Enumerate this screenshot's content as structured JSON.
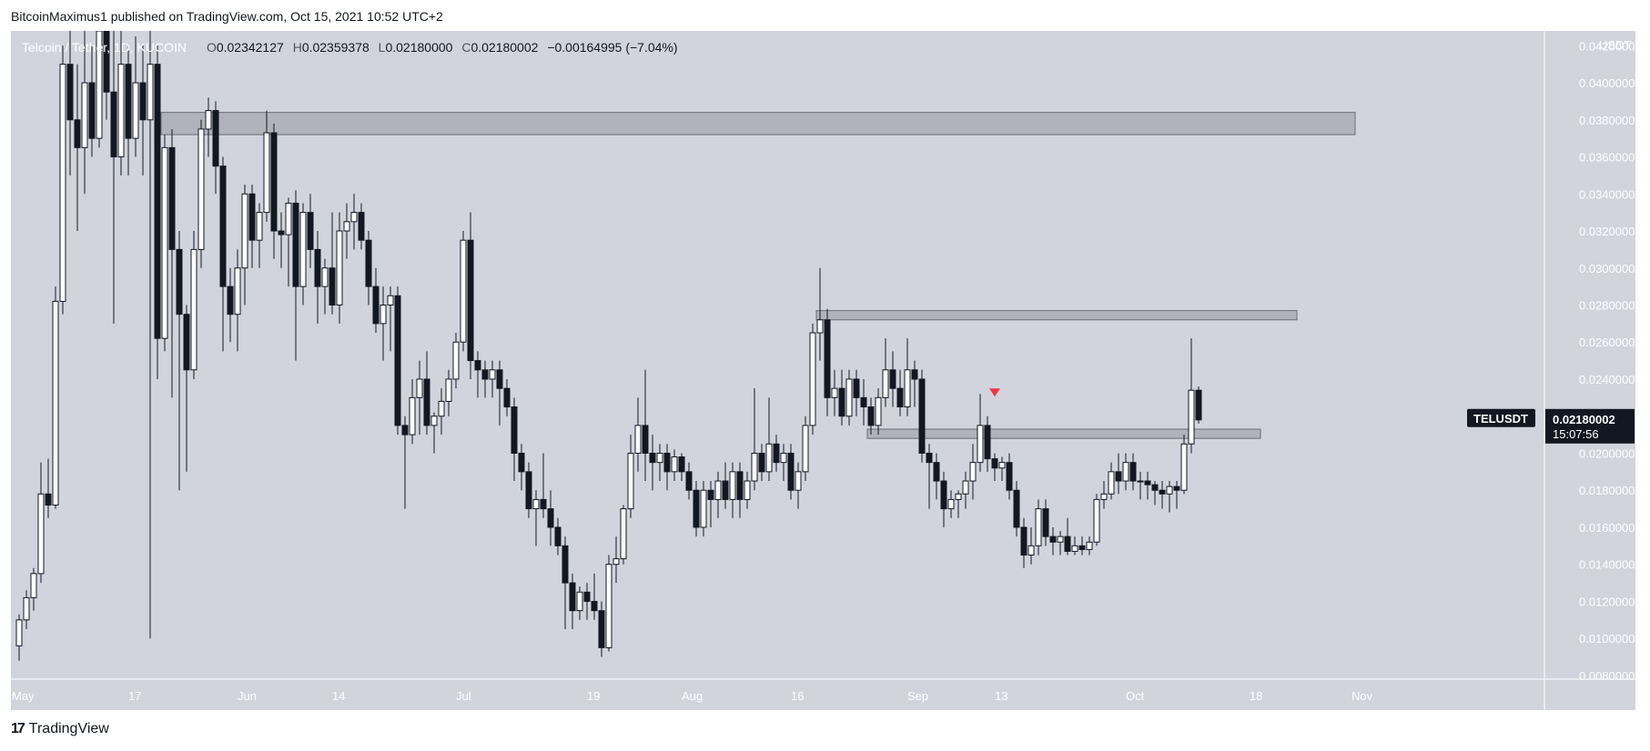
{
  "header": {
    "caption": "BitcoinMaximus1 published on TradingView.com, Oct 15, 2021 10:52 UTC+2"
  },
  "legend": {
    "symbol": "Telcoin / Tether, 1D, KUCOIN",
    "o_label": "O",
    "o_value": "0.02342127",
    "h_label": "H",
    "h_value": "0.02359378",
    "l_label": "L",
    "l_value": "0.02180000",
    "c_label": "C",
    "c_value": "0.02180002",
    "change": "−0.00164995 (−7.04%)"
  },
  "footer": {
    "logo_text": "TradingView"
  },
  "colors": {
    "background": "#d1d4dc",
    "candle_up": "#ffffff",
    "candle_down": "#131722",
    "zone": "#9598a1",
    "marker": "#f23645",
    "label_bg": "#131722"
  },
  "chart_data": {
    "type": "candlestick",
    "title": "Telcoin / Tether, 1D, KUCOIN",
    "currency": "USDT",
    "ylim": [
      0.0078,
      0.0428
    ],
    "y_ticks": [
      "0.04200000",
      "0.04000000",
      "0.03800000",
      "0.03600000",
      "0.03400000",
      "0.03200000",
      "0.03000000",
      "0.02800000",
      "0.02600000",
      "0.02400000",
      "0.02200000",
      "0.02000000",
      "0.01800000",
      "0.01600000",
      "0.01400000",
      "0.01200000",
      "0.01000000",
      "0.00800000"
    ],
    "x_ticks": [
      {
        "label": "May",
        "day": 0
      },
      {
        "label": "17",
        "day": 16
      },
      {
        "label": "Jun",
        "day": 31
      },
      {
        "label": "14",
        "day": 44
      },
      {
        "label": "Jul",
        "day": 61
      },
      {
        "label": "19",
        "day": 79
      },
      {
        "label": "Aug",
        "day": 92
      },
      {
        "label": "16",
        "day": 107
      },
      {
        "label": "Sep",
        "day": 123
      },
      {
        "label": "13",
        "day": 135
      },
      {
        "label": "Oct",
        "day": 153
      },
      {
        "label": "18",
        "day": 170
      },
      {
        "label": "Nov",
        "day": 184
      }
    ],
    "zones": [
      {
        "name": "resistance-zone-top",
        "day_start": 20,
        "day_end": 184,
        "low": 0.0372,
        "high": 0.0384
      },
      {
        "name": "resistance-zone-mid",
        "day_start": 110,
        "day_end": 176,
        "low": 0.0272,
        "high": 0.0277
      },
      {
        "name": "support-zone",
        "day_start": 117,
        "day_end": 171,
        "low": 0.0208,
        "high": 0.0213
      }
    ],
    "marker": {
      "day": 134,
      "value": 0.0232,
      "shape": "triangle-down"
    },
    "price_label": {
      "symbol": "TELUSDT",
      "value": "0.02180002",
      "countdown": "15:07:56"
    },
    "candles": [
      [
        0.0096,
        0.011,
        0.0088,
        0.0113
      ],
      [
        0.011,
        0.0122,
        0.0105,
        0.0126
      ],
      [
        0.0122,
        0.0135,
        0.0115,
        0.0138
      ],
      [
        0.0135,
        0.0178,
        0.013,
        0.0195
      ],
      [
        0.0178,
        0.0172,
        0.0165,
        0.0197
      ],
      [
        0.0172,
        0.0282,
        0.017,
        0.029
      ],
      [
        0.0282,
        0.041,
        0.0275,
        0.042
      ],
      [
        0.041,
        0.038,
        0.035,
        0.043
      ],
      [
        0.038,
        0.0365,
        0.032,
        0.041
      ],
      [
        0.0365,
        0.04,
        0.034,
        0.044
      ],
      [
        0.04,
        0.037,
        0.036,
        0.042
      ],
      [
        0.037,
        0.046,
        0.0365,
        0.047
      ],
      [
        0.046,
        0.0395,
        0.038,
        0.048
      ],
      [
        0.0395,
        0.036,
        0.027,
        0.043
      ],
      [
        0.036,
        0.041,
        0.035,
        0.044
      ],
      [
        0.041,
        0.037,
        0.035,
        0.042
      ],
      [
        0.037,
        0.04,
        0.036,
        0.0425
      ],
      [
        0.04,
        0.038,
        0.035,
        0.042
      ],
      [
        0.038,
        0.041,
        0.01,
        0.043
      ],
      [
        0.041,
        0.0262,
        0.024,
        0.042
      ],
      [
        0.0262,
        0.0365,
        0.0255,
        0.0372
      ],
      [
        0.0365,
        0.031,
        0.023,
        0.0375
      ],
      [
        0.031,
        0.0275,
        0.018,
        0.032
      ],
      [
        0.0275,
        0.0245,
        0.019,
        0.028
      ],
      [
        0.0245,
        0.031,
        0.024,
        0.032
      ],
      [
        0.031,
        0.0375,
        0.03,
        0.038
      ],
      [
        0.0375,
        0.0385,
        0.036,
        0.0392
      ],
      [
        0.0385,
        0.0355,
        0.034,
        0.039
      ],
      [
        0.0355,
        0.029,
        0.0255,
        0.036
      ],
      [
        0.029,
        0.0275,
        0.026,
        0.03
      ],
      [
        0.0275,
        0.03,
        0.0255,
        0.031
      ],
      [
        0.03,
        0.034,
        0.028,
        0.0345
      ],
      [
        0.034,
        0.0315,
        0.03,
        0.0345
      ],
      [
        0.0315,
        0.033,
        0.03,
        0.0335
      ],
      [
        0.033,
        0.0373,
        0.0325,
        0.0385
      ],
      [
        0.0373,
        0.032,
        0.0305,
        0.0378
      ],
      [
        0.032,
        0.0318,
        0.03,
        0.033
      ],
      [
        0.0318,
        0.0335,
        0.029,
        0.0338
      ],
      [
        0.0335,
        0.029,
        0.025,
        0.0342
      ],
      [
        0.029,
        0.033,
        0.028,
        0.0335
      ],
      [
        0.033,
        0.031,
        0.03,
        0.034
      ],
      [
        0.031,
        0.029,
        0.027,
        0.032
      ],
      [
        0.029,
        0.03,
        0.0275,
        0.0305
      ],
      [
        0.03,
        0.028,
        0.0275,
        0.033
      ],
      [
        0.028,
        0.032,
        0.027,
        0.033
      ],
      [
        0.032,
        0.0325,
        0.0305,
        0.0335
      ],
      [
        0.0325,
        0.033,
        0.031,
        0.034
      ],
      [
        0.033,
        0.0315,
        0.031,
        0.0335
      ],
      [
        0.0315,
        0.029,
        0.028,
        0.032
      ],
      [
        0.029,
        0.027,
        0.0265,
        0.03
      ],
      [
        0.027,
        0.028,
        0.025,
        0.029
      ],
      [
        0.028,
        0.0285,
        0.0255,
        0.029
      ],
      [
        0.0285,
        0.0215,
        0.021,
        0.029
      ],
      [
        0.0215,
        0.021,
        0.017,
        0.022
      ],
      [
        0.021,
        0.023,
        0.0205,
        0.024
      ],
      [
        0.023,
        0.024,
        0.021,
        0.025
      ],
      [
        0.024,
        0.0215,
        0.021,
        0.0255
      ],
      [
        0.0215,
        0.022,
        0.02,
        0.0222
      ],
      [
        0.022,
        0.0228,
        0.021,
        0.0235
      ],
      [
        0.0228,
        0.024,
        0.022,
        0.0245
      ],
      [
        0.024,
        0.026,
        0.0235,
        0.0265
      ],
      [
        0.026,
        0.0315,
        0.0255,
        0.032
      ],
      [
        0.0315,
        0.025,
        0.024,
        0.033
      ],
      [
        0.025,
        0.0245,
        0.023,
        0.0255
      ],
      [
        0.0245,
        0.024,
        0.023,
        0.025
      ],
      [
        0.024,
        0.0245,
        0.023,
        0.025
      ],
      [
        0.0245,
        0.0235,
        0.0215,
        0.025
      ],
      [
        0.0235,
        0.0225,
        0.022,
        0.024
      ],
      [
        0.0225,
        0.02,
        0.0185,
        0.023
      ],
      [
        0.02,
        0.019,
        0.018,
        0.0205
      ],
      [
        0.019,
        0.017,
        0.0165,
        0.0195
      ],
      [
        0.017,
        0.0175,
        0.015,
        0.018
      ],
      [
        0.0175,
        0.017,
        0.0165,
        0.02
      ],
      [
        0.017,
        0.016,
        0.015,
        0.018
      ],
      [
        0.016,
        0.015,
        0.0145,
        0.0165
      ],
      [
        0.015,
        0.013,
        0.0105,
        0.0155
      ],
      [
        0.013,
        0.0115,
        0.0105,
        0.0135
      ],
      [
        0.0115,
        0.0125,
        0.011,
        0.0128
      ],
      [
        0.0125,
        0.012,
        0.011,
        0.013
      ],
      [
        0.012,
        0.0115,
        0.011,
        0.0135
      ],
      [
        0.0115,
        0.0095,
        0.009,
        0.012
      ],
      [
        0.0095,
        0.014,
        0.0093,
        0.0145
      ],
      [
        0.014,
        0.0143,
        0.013,
        0.0155
      ],
      [
        0.0143,
        0.017,
        0.014,
        0.0172
      ],
      [
        0.017,
        0.02,
        0.0165,
        0.021
      ],
      [
        0.02,
        0.0215,
        0.019,
        0.023
      ],
      [
        0.0215,
        0.02,
        0.0185,
        0.0245
      ],
      [
        0.02,
        0.0195,
        0.018,
        0.021
      ],
      [
        0.0195,
        0.02,
        0.0185,
        0.0205
      ],
      [
        0.02,
        0.019,
        0.018,
        0.0205
      ],
      [
        0.019,
        0.0198,
        0.0185,
        0.0202
      ],
      [
        0.0198,
        0.019,
        0.0185,
        0.02
      ],
      [
        0.019,
        0.018,
        0.0175,
        0.0195
      ],
      [
        0.018,
        0.016,
        0.0155,
        0.0185
      ],
      [
        0.016,
        0.018,
        0.0155,
        0.0185
      ],
      [
        0.018,
        0.0175,
        0.016,
        0.0185
      ],
      [
        0.0175,
        0.0185,
        0.0165,
        0.019
      ],
      [
        0.0185,
        0.0175,
        0.017,
        0.0195
      ],
      [
        0.0175,
        0.019,
        0.0165,
        0.0195
      ],
      [
        0.019,
        0.0175,
        0.0165,
        0.0195
      ],
      [
        0.0175,
        0.0185,
        0.017,
        0.019
      ],
      [
        0.0185,
        0.02,
        0.018,
        0.0235
      ],
      [
        0.02,
        0.019,
        0.0185,
        0.0205
      ],
      [
        0.019,
        0.0205,
        0.0185,
        0.023
      ],
      [
        0.0205,
        0.0195,
        0.019,
        0.021
      ],
      [
        0.0195,
        0.02,
        0.0185,
        0.0205
      ],
      [
        0.02,
        0.018,
        0.0175,
        0.0205
      ],
      [
        0.018,
        0.019,
        0.017,
        0.0195
      ],
      [
        0.019,
        0.0215,
        0.0185,
        0.022
      ],
      [
        0.0215,
        0.0265,
        0.021,
        0.027
      ],
      [
        0.0265,
        0.0272,
        0.025,
        0.03
      ],
      [
        0.0272,
        0.023,
        0.022,
        0.0278
      ],
      [
        0.023,
        0.0235,
        0.022,
        0.0245
      ],
      [
        0.0235,
        0.022,
        0.0215,
        0.0245
      ],
      [
        0.022,
        0.024,
        0.0215,
        0.0245
      ],
      [
        0.024,
        0.023,
        0.022,
        0.0245
      ],
      [
        0.023,
        0.0225,
        0.0215,
        0.024
      ],
      [
        0.0225,
        0.0215,
        0.021,
        0.023
      ],
      [
        0.0215,
        0.023,
        0.021,
        0.0235
      ],
      [
        0.023,
        0.0245,
        0.0225,
        0.0262
      ],
      [
        0.0245,
        0.0235,
        0.0225,
        0.0255
      ],
      [
        0.0235,
        0.0225,
        0.022,
        0.0245
      ],
      [
        0.0225,
        0.0245,
        0.022,
        0.0262
      ],
      [
        0.0245,
        0.024,
        0.0225,
        0.025
      ],
      [
        0.024,
        0.02,
        0.0195,
        0.0245
      ],
      [
        0.02,
        0.0195,
        0.017,
        0.0205
      ],
      [
        0.0195,
        0.0185,
        0.0175,
        0.02
      ],
      [
        0.0185,
        0.017,
        0.016,
        0.019
      ],
      [
        0.017,
        0.0175,
        0.0165,
        0.018
      ],
      [
        0.0175,
        0.0178,
        0.0165,
        0.018
      ],
      [
        0.0178,
        0.0185,
        0.017,
        0.019
      ],
      [
        0.0185,
        0.0195,
        0.0175,
        0.0205
      ],
      [
        0.0195,
        0.0215,
        0.019,
        0.0232
      ],
      [
        0.0215,
        0.0197,
        0.019,
        0.022
      ],
      [
        0.0197,
        0.0192,
        0.0185,
        0.02
      ],
      [
        0.0192,
        0.0195,
        0.0185,
        0.0198
      ],
      [
        0.0195,
        0.018,
        0.0175,
        0.02
      ],
      [
        0.018,
        0.016,
        0.0155,
        0.0185
      ],
      [
        0.016,
        0.0145,
        0.0138,
        0.0165
      ],
      [
        0.0145,
        0.015,
        0.014,
        0.016
      ],
      [
        0.015,
        0.017,
        0.0145,
        0.0175
      ],
      [
        0.017,
        0.0155,
        0.015,
        0.0175
      ],
      [
        0.0155,
        0.0152,
        0.0145,
        0.016
      ],
      [
        0.0152,
        0.0155,
        0.0145,
        0.0158
      ],
      [
        0.0155,
        0.0147,
        0.0145,
        0.0165
      ],
      [
        0.0147,
        0.015,
        0.0145,
        0.0155
      ],
      [
        0.015,
        0.0148,
        0.0145,
        0.0155
      ],
      [
        0.0148,
        0.0152,
        0.0145,
        0.0155
      ],
      [
        0.0152,
        0.0175,
        0.015,
        0.0178
      ],
      [
        0.0175,
        0.0178,
        0.017,
        0.0185
      ],
      [
        0.0178,
        0.019,
        0.0175,
        0.0195
      ],
      [
        0.019,
        0.0185,
        0.0178,
        0.02
      ],
      [
        0.0185,
        0.0195,
        0.018,
        0.02
      ],
      [
        0.0195,
        0.0185,
        0.018,
        0.02
      ],
      [
        0.0185,
        0.0185,
        0.0175,
        0.019
      ],
      [
        0.0185,
        0.0183,
        0.0175,
        0.019
      ],
      [
        0.0183,
        0.018,
        0.0172,
        0.0185
      ],
      [
        0.018,
        0.0178,
        0.017,
        0.0185
      ],
      [
        0.0178,
        0.0182,
        0.0168,
        0.0185
      ],
      [
        0.0182,
        0.018,
        0.017,
        0.0185
      ],
      [
        0.018,
        0.0205,
        0.0178,
        0.021
      ],
      [
        0.0205,
        0.0234,
        0.02,
        0.0262
      ],
      [
        0.0234,
        0.0218,
        0.0216,
        0.0236
      ]
    ]
  }
}
